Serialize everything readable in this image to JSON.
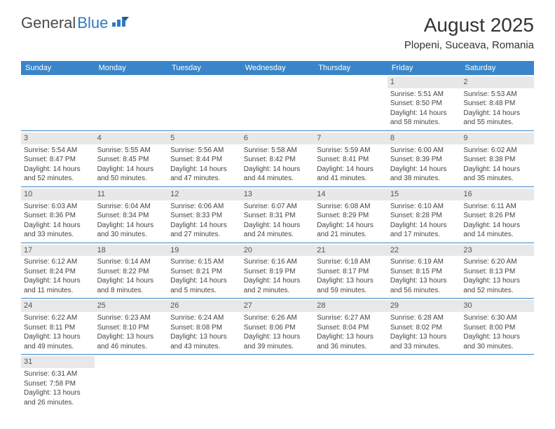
{
  "logo": {
    "part1": "General",
    "part2": "Blue"
  },
  "title": "August 2025",
  "location": "Plopeni, Suceava, Romania",
  "colors": {
    "header_bg": "#3a85c9",
    "header_fg": "#ffffff",
    "daynum_bg": "#e8e8e8",
    "cell_border": "#3a85c9",
    "logo_blue": "#2f7bbf"
  },
  "weekdays": [
    "Sunday",
    "Monday",
    "Tuesday",
    "Wednesday",
    "Thursday",
    "Friday",
    "Saturday"
  ],
  "weeks": [
    [
      null,
      null,
      null,
      null,
      null,
      {
        "n": "1",
        "sr": "Sunrise: 5:51 AM",
        "ss": "Sunset: 8:50 PM",
        "d1": "Daylight: 14 hours",
        "d2": "and 58 minutes."
      },
      {
        "n": "2",
        "sr": "Sunrise: 5:53 AM",
        "ss": "Sunset: 8:48 PM",
        "d1": "Daylight: 14 hours",
        "d2": "and 55 minutes."
      }
    ],
    [
      {
        "n": "3",
        "sr": "Sunrise: 5:54 AM",
        "ss": "Sunset: 8:47 PM",
        "d1": "Daylight: 14 hours",
        "d2": "and 52 minutes."
      },
      {
        "n": "4",
        "sr": "Sunrise: 5:55 AM",
        "ss": "Sunset: 8:45 PM",
        "d1": "Daylight: 14 hours",
        "d2": "and 50 minutes."
      },
      {
        "n": "5",
        "sr": "Sunrise: 5:56 AM",
        "ss": "Sunset: 8:44 PM",
        "d1": "Daylight: 14 hours",
        "d2": "and 47 minutes."
      },
      {
        "n": "6",
        "sr": "Sunrise: 5:58 AM",
        "ss": "Sunset: 8:42 PM",
        "d1": "Daylight: 14 hours",
        "d2": "and 44 minutes."
      },
      {
        "n": "7",
        "sr": "Sunrise: 5:59 AM",
        "ss": "Sunset: 8:41 PM",
        "d1": "Daylight: 14 hours",
        "d2": "and 41 minutes."
      },
      {
        "n": "8",
        "sr": "Sunrise: 6:00 AM",
        "ss": "Sunset: 8:39 PM",
        "d1": "Daylight: 14 hours",
        "d2": "and 38 minutes."
      },
      {
        "n": "9",
        "sr": "Sunrise: 6:02 AM",
        "ss": "Sunset: 8:38 PM",
        "d1": "Daylight: 14 hours",
        "d2": "and 35 minutes."
      }
    ],
    [
      {
        "n": "10",
        "sr": "Sunrise: 6:03 AM",
        "ss": "Sunset: 8:36 PM",
        "d1": "Daylight: 14 hours",
        "d2": "and 33 minutes."
      },
      {
        "n": "11",
        "sr": "Sunrise: 6:04 AM",
        "ss": "Sunset: 8:34 PM",
        "d1": "Daylight: 14 hours",
        "d2": "and 30 minutes."
      },
      {
        "n": "12",
        "sr": "Sunrise: 6:06 AM",
        "ss": "Sunset: 8:33 PM",
        "d1": "Daylight: 14 hours",
        "d2": "and 27 minutes."
      },
      {
        "n": "13",
        "sr": "Sunrise: 6:07 AM",
        "ss": "Sunset: 8:31 PM",
        "d1": "Daylight: 14 hours",
        "d2": "and 24 minutes."
      },
      {
        "n": "14",
        "sr": "Sunrise: 6:08 AM",
        "ss": "Sunset: 8:29 PM",
        "d1": "Daylight: 14 hours",
        "d2": "and 21 minutes."
      },
      {
        "n": "15",
        "sr": "Sunrise: 6:10 AM",
        "ss": "Sunset: 8:28 PM",
        "d1": "Daylight: 14 hours",
        "d2": "and 17 minutes."
      },
      {
        "n": "16",
        "sr": "Sunrise: 6:11 AM",
        "ss": "Sunset: 8:26 PM",
        "d1": "Daylight: 14 hours",
        "d2": "and 14 minutes."
      }
    ],
    [
      {
        "n": "17",
        "sr": "Sunrise: 6:12 AM",
        "ss": "Sunset: 8:24 PM",
        "d1": "Daylight: 14 hours",
        "d2": "and 11 minutes."
      },
      {
        "n": "18",
        "sr": "Sunrise: 6:14 AM",
        "ss": "Sunset: 8:22 PM",
        "d1": "Daylight: 14 hours",
        "d2": "and 8 minutes."
      },
      {
        "n": "19",
        "sr": "Sunrise: 6:15 AM",
        "ss": "Sunset: 8:21 PM",
        "d1": "Daylight: 14 hours",
        "d2": "and 5 minutes."
      },
      {
        "n": "20",
        "sr": "Sunrise: 6:16 AM",
        "ss": "Sunset: 8:19 PM",
        "d1": "Daylight: 14 hours",
        "d2": "and 2 minutes."
      },
      {
        "n": "21",
        "sr": "Sunrise: 6:18 AM",
        "ss": "Sunset: 8:17 PM",
        "d1": "Daylight: 13 hours",
        "d2": "and 59 minutes."
      },
      {
        "n": "22",
        "sr": "Sunrise: 6:19 AM",
        "ss": "Sunset: 8:15 PM",
        "d1": "Daylight: 13 hours",
        "d2": "and 56 minutes."
      },
      {
        "n": "23",
        "sr": "Sunrise: 6:20 AM",
        "ss": "Sunset: 8:13 PM",
        "d1": "Daylight: 13 hours",
        "d2": "and 52 minutes."
      }
    ],
    [
      {
        "n": "24",
        "sr": "Sunrise: 6:22 AM",
        "ss": "Sunset: 8:11 PM",
        "d1": "Daylight: 13 hours",
        "d2": "and 49 minutes."
      },
      {
        "n": "25",
        "sr": "Sunrise: 6:23 AM",
        "ss": "Sunset: 8:10 PM",
        "d1": "Daylight: 13 hours",
        "d2": "and 46 minutes."
      },
      {
        "n": "26",
        "sr": "Sunrise: 6:24 AM",
        "ss": "Sunset: 8:08 PM",
        "d1": "Daylight: 13 hours",
        "d2": "and 43 minutes."
      },
      {
        "n": "27",
        "sr": "Sunrise: 6:26 AM",
        "ss": "Sunset: 8:06 PM",
        "d1": "Daylight: 13 hours",
        "d2": "and 39 minutes."
      },
      {
        "n": "28",
        "sr": "Sunrise: 6:27 AM",
        "ss": "Sunset: 8:04 PM",
        "d1": "Daylight: 13 hours",
        "d2": "and 36 minutes."
      },
      {
        "n": "29",
        "sr": "Sunrise: 6:28 AM",
        "ss": "Sunset: 8:02 PM",
        "d1": "Daylight: 13 hours",
        "d2": "and 33 minutes."
      },
      {
        "n": "30",
        "sr": "Sunrise: 6:30 AM",
        "ss": "Sunset: 8:00 PM",
        "d1": "Daylight: 13 hours",
        "d2": "and 30 minutes."
      }
    ],
    [
      {
        "n": "31",
        "sr": "Sunrise: 6:31 AM",
        "ss": "Sunset: 7:58 PM",
        "d1": "Daylight: 13 hours",
        "d2": "and 26 minutes."
      },
      null,
      null,
      null,
      null,
      null,
      null
    ]
  ]
}
